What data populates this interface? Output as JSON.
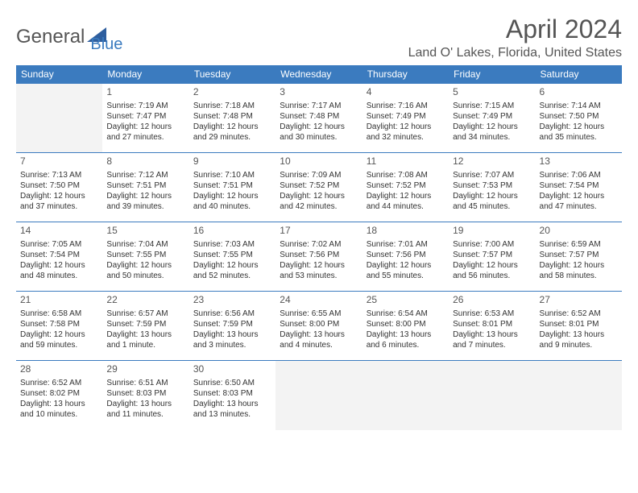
{
  "logo": {
    "part1": "General",
    "part2": "Blue"
  },
  "title": "April 2024",
  "location": "Land O' Lakes, Florida, United States",
  "colors": {
    "header_bg": "#3b7bbf",
    "header_text": "#ffffff",
    "border": "#3b7bbf",
    "empty_bg": "#f3f3f3",
    "title_color": "#555555",
    "body_text": "#333333"
  },
  "structure": {
    "type": "calendar-table",
    "columns": 7,
    "rows": 5,
    "cell_fontsize_pt": 10,
    "header_fontsize_pt": 12,
    "title_fontsize_pt": 32
  },
  "day_headers": [
    "Sunday",
    "Monday",
    "Tuesday",
    "Wednesday",
    "Thursday",
    "Friday",
    "Saturday"
  ],
  "weeks": [
    [
      null,
      {
        "n": "1",
        "sunrise": "7:19 AM",
        "sunset": "7:47 PM",
        "daylight": "12 hours and 27 minutes."
      },
      {
        "n": "2",
        "sunrise": "7:18 AM",
        "sunset": "7:48 PM",
        "daylight": "12 hours and 29 minutes."
      },
      {
        "n": "3",
        "sunrise": "7:17 AM",
        "sunset": "7:48 PM",
        "daylight": "12 hours and 30 minutes."
      },
      {
        "n": "4",
        "sunrise": "7:16 AM",
        "sunset": "7:49 PM",
        "daylight": "12 hours and 32 minutes."
      },
      {
        "n": "5",
        "sunrise": "7:15 AM",
        "sunset": "7:49 PM",
        "daylight": "12 hours and 34 minutes."
      },
      {
        "n": "6",
        "sunrise": "7:14 AM",
        "sunset": "7:50 PM",
        "daylight": "12 hours and 35 minutes."
      }
    ],
    [
      {
        "n": "7",
        "sunrise": "7:13 AM",
        "sunset": "7:50 PM",
        "daylight": "12 hours and 37 minutes."
      },
      {
        "n": "8",
        "sunrise": "7:12 AM",
        "sunset": "7:51 PM",
        "daylight": "12 hours and 39 minutes."
      },
      {
        "n": "9",
        "sunrise": "7:10 AM",
        "sunset": "7:51 PM",
        "daylight": "12 hours and 40 minutes."
      },
      {
        "n": "10",
        "sunrise": "7:09 AM",
        "sunset": "7:52 PM",
        "daylight": "12 hours and 42 minutes."
      },
      {
        "n": "11",
        "sunrise": "7:08 AM",
        "sunset": "7:52 PM",
        "daylight": "12 hours and 44 minutes."
      },
      {
        "n": "12",
        "sunrise": "7:07 AM",
        "sunset": "7:53 PM",
        "daylight": "12 hours and 45 minutes."
      },
      {
        "n": "13",
        "sunrise": "7:06 AM",
        "sunset": "7:54 PM",
        "daylight": "12 hours and 47 minutes."
      }
    ],
    [
      {
        "n": "14",
        "sunrise": "7:05 AM",
        "sunset": "7:54 PM",
        "daylight": "12 hours and 48 minutes."
      },
      {
        "n": "15",
        "sunrise": "7:04 AM",
        "sunset": "7:55 PM",
        "daylight": "12 hours and 50 minutes."
      },
      {
        "n": "16",
        "sunrise": "7:03 AM",
        "sunset": "7:55 PM",
        "daylight": "12 hours and 52 minutes."
      },
      {
        "n": "17",
        "sunrise": "7:02 AM",
        "sunset": "7:56 PM",
        "daylight": "12 hours and 53 minutes."
      },
      {
        "n": "18",
        "sunrise": "7:01 AM",
        "sunset": "7:56 PM",
        "daylight": "12 hours and 55 minutes."
      },
      {
        "n": "19",
        "sunrise": "7:00 AM",
        "sunset": "7:57 PM",
        "daylight": "12 hours and 56 minutes."
      },
      {
        "n": "20",
        "sunrise": "6:59 AM",
        "sunset": "7:57 PM",
        "daylight": "12 hours and 58 minutes."
      }
    ],
    [
      {
        "n": "21",
        "sunrise": "6:58 AM",
        "sunset": "7:58 PM",
        "daylight": "12 hours and 59 minutes."
      },
      {
        "n": "22",
        "sunrise": "6:57 AM",
        "sunset": "7:59 PM",
        "daylight": "13 hours and 1 minute."
      },
      {
        "n": "23",
        "sunrise": "6:56 AM",
        "sunset": "7:59 PM",
        "daylight": "13 hours and 3 minutes."
      },
      {
        "n": "24",
        "sunrise": "6:55 AM",
        "sunset": "8:00 PM",
        "daylight": "13 hours and 4 minutes."
      },
      {
        "n": "25",
        "sunrise": "6:54 AM",
        "sunset": "8:00 PM",
        "daylight": "13 hours and 6 minutes."
      },
      {
        "n": "26",
        "sunrise": "6:53 AM",
        "sunset": "8:01 PM",
        "daylight": "13 hours and 7 minutes."
      },
      {
        "n": "27",
        "sunrise": "6:52 AM",
        "sunset": "8:01 PM",
        "daylight": "13 hours and 9 minutes."
      }
    ],
    [
      {
        "n": "28",
        "sunrise": "6:52 AM",
        "sunset": "8:02 PM",
        "daylight": "13 hours and 10 minutes."
      },
      {
        "n": "29",
        "sunrise": "6:51 AM",
        "sunset": "8:03 PM",
        "daylight": "13 hours and 11 minutes."
      },
      {
        "n": "30",
        "sunrise": "6:50 AM",
        "sunset": "8:03 PM",
        "daylight": "13 hours and 13 minutes."
      },
      null,
      null,
      null,
      null
    ]
  ],
  "labels": {
    "sunrise": "Sunrise: ",
    "sunset": "Sunset: ",
    "daylight": "Daylight: "
  }
}
